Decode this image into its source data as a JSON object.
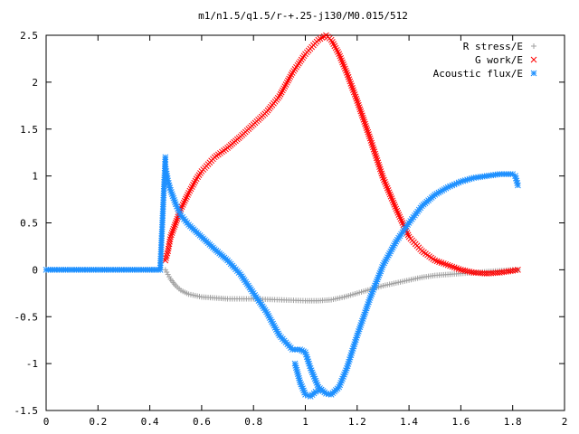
{
  "chart_data": {
    "type": "scatter",
    "title": "m1/n1.5/q1.5/r-+.25-j130/M0.015/512",
    "xlabel": "",
    "ylabel": "",
    "xlim": [
      0,
      2
    ],
    "ylim": [
      -1.5,
      2.5
    ],
    "x_ticks": [
      "0",
      "0.2",
      "0.4",
      "0.6",
      "0.8",
      "1",
      "1.2",
      "1.4",
      "1.6",
      "1.8",
      "2"
    ],
    "y_ticks": [
      "2.5",
      "2",
      "1.5",
      "1",
      "0.5",
      "0",
      "-0.5",
      "-1",
      "-1.5"
    ],
    "grid": false,
    "legend_position": "top-right",
    "series": [
      {
        "name": "R stress/E",
        "marker": "plus",
        "color": "#a0a0a0",
        "points": [
          [
            0.46,
            0.0
          ],
          [
            0.47,
            -0.05
          ],
          [
            0.48,
            -0.1
          ],
          [
            0.5,
            -0.17
          ],
          [
            0.52,
            -0.22
          ],
          [
            0.55,
            -0.26
          ],
          [
            0.6,
            -0.29
          ],
          [
            0.65,
            -0.3
          ],
          [
            0.7,
            -0.31
          ],
          [
            0.8,
            -0.31
          ],
          [
            0.9,
            -0.32
          ],
          [
            1.0,
            -0.33
          ],
          [
            1.05,
            -0.33
          ],
          [
            1.1,
            -0.32
          ],
          [
            1.15,
            -0.29
          ],
          [
            1.2,
            -0.25
          ],
          [
            1.25,
            -0.21
          ],
          [
            1.3,
            -0.17
          ],
          [
            1.35,
            -0.14
          ],
          [
            1.4,
            -0.11
          ],
          [
            1.45,
            -0.08
          ],
          [
            1.5,
            -0.06
          ],
          [
            1.55,
            -0.05
          ],
          [
            1.6,
            -0.04
          ],
          [
            1.65,
            -0.03
          ],
          [
            1.7,
            -0.02
          ],
          [
            1.75,
            -0.01
          ],
          [
            1.8,
            0.0
          ],
          [
            1.82,
            0.0
          ]
        ]
      },
      {
        "name": "G work/E",
        "marker": "x",
        "color": "#ff0000",
        "points": [
          [
            0.46,
            0.1
          ],
          [
            0.47,
            0.2
          ],
          [
            0.48,
            0.35
          ],
          [
            0.5,
            0.5
          ],
          [
            0.52,
            0.65
          ],
          [
            0.55,
            0.82
          ],
          [
            0.58,
            0.97
          ],
          [
            0.6,
            1.05
          ],
          [
            0.65,
            1.2
          ],
          [
            0.7,
            1.3
          ],
          [
            0.75,
            1.42
          ],
          [
            0.8,
            1.55
          ],
          [
            0.85,
            1.68
          ],
          [
            0.9,
            1.85
          ],
          [
            0.95,
            2.1
          ],
          [
            1.0,
            2.3
          ],
          [
            1.05,
            2.45
          ],
          [
            1.08,
            2.5
          ],
          [
            1.1,
            2.45
          ],
          [
            1.13,
            2.3
          ],
          [
            1.16,
            2.1
          ],
          [
            1.2,
            1.8
          ],
          [
            1.25,
            1.4
          ],
          [
            1.3,
            0.98
          ],
          [
            1.35,
            0.65
          ],
          [
            1.4,
            0.35
          ],
          [
            1.45,
            0.2
          ],
          [
            1.5,
            0.1
          ],
          [
            1.55,
            0.05
          ],
          [
            1.6,
            0.0
          ],
          [
            1.65,
            -0.03
          ],
          [
            1.7,
            -0.04
          ],
          [
            1.75,
            -0.03
          ],
          [
            1.8,
            -0.01
          ],
          [
            1.82,
            0.0
          ]
        ]
      },
      {
        "name": "Acoustic flux/E",
        "marker": "star",
        "color": "#1e90ff",
        "points": [
          [
            0.0,
            0.0
          ],
          [
            0.05,
            0.0
          ],
          [
            0.1,
            0.0
          ],
          [
            0.15,
            0.0
          ],
          [
            0.2,
            0.0
          ],
          [
            0.25,
            0.0
          ],
          [
            0.3,
            0.0
          ],
          [
            0.35,
            0.0
          ],
          [
            0.4,
            0.0
          ],
          [
            0.44,
            0.0
          ],
          [
            0.46,
            1.2
          ],
          [
            0.46,
            1.1
          ],
          [
            0.47,
            0.95
          ],
          [
            0.48,
            0.85
          ],
          [
            0.5,
            0.7
          ],
          [
            0.52,
            0.58
          ],
          [
            0.55,
            0.48
          ],
          [
            0.6,
            0.35
          ],
          [
            0.65,
            0.22
          ],
          [
            0.7,
            0.1
          ],
          [
            0.75,
            -0.05
          ],
          [
            0.8,
            -0.25
          ],
          [
            0.85,
            -0.45
          ],
          [
            0.9,
            -0.7
          ],
          [
            0.95,
            -0.85
          ],
          [
            0.98,
            -0.85
          ],
          [
            1.0,
            -0.88
          ],
          [
            1.02,
            -1.05
          ],
          [
            1.05,
            -1.25
          ],
          [
            1.08,
            -1.32
          ],
          [
            1.1,
            -1.33
          ],
          [
            1.13,
            -1.25
          ],
          [
            1.16,
            -1.05
          ],
          [
            1.2,
            -0.7
          ],
          [
            1.25,
            -0.3
          ],
          [
            1.3,
            0.05
          ],
          [
            1.35,
            0.3
          ],
          [
            1.4,
            0.5
          ],
          [
            1.45,
            0.68
          ],
          [
            1.5,
            0.8
          ],
          [
            1.55,
            0.88
          ],
          [
            1.6,
            0.94
          ],
          [
            1.65,
            0.98
          ],
          [
            1.7,
            1.0
          ],
          [
            1.75,
            1.02
          ],
          [
            1.8,
            1.02
          ],
          [
            1.81,
            1.0
          ],
          [
            1.82,
            0.9
          ]
        ]
      },
      {
        "name": "",
        "marker": "star",
        "color": "#1e90ff",
        "points": [
          [
            0.96,
            -1.0
          ],
          [
            0.98,
            -1.2
          ],
          [
            1.0,
            -1.33
          ],
          [
            1.02,
            -1.35
          ],
          [
            1.04,
            -1.3
          ],
          [
            1.06,
            -1.28
          ]
        ]
      }
    ]
  }
}
